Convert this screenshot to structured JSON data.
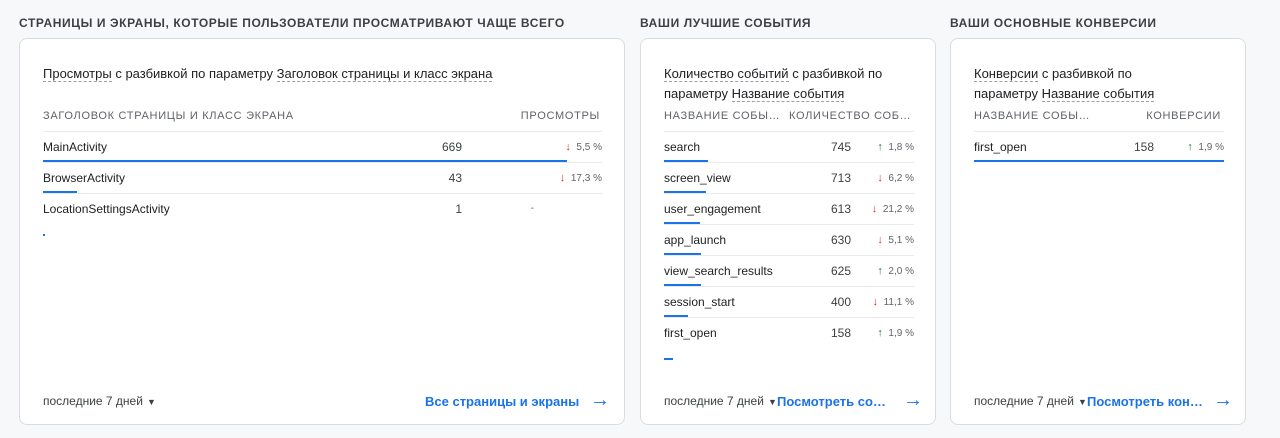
{
  "pages": {
    "title": "СТРАНИЦЫ И ЭКРАНЫ, КОТОРЫЕ ПОЛЬЗОВАТЕЛИ ПРОСМАТРИВАЮТ ЧАЩЕ ВСЕГО",
    "header": {
      "metric": "Просмотры",
      "mid": " с разбивкой по параметру ",
      "dimension": "Заголовок страницы и класс экрана"
    },
    "col1": "ЗАГОЛОВОК СТРАНИЦЫ И КЛАСС ЭКРАНА",
    "col2": "ПРОСМОТРЫ",
    "rows": [
      {
        "name": "MainActivity",
        "value": "669",
        "change": "5,5 %",
        "dir": "down",
        "share": 1.0
      },
      {
        "name": "BrowserActivity",
        "value": "43",
        "change": "17,3 %",
        "dir": "down",
        "share": 0.064
      },
      {
        "name": "LocationSettingsActivity",
        "value": "1",
        "change": "-",
        "dir": "none",
        "share": 0.0015
      }
    ],
    "period": "последние 7 дней",
    "link": "Все страницы и экраны"
  },
  "events": {
    "title": "ВАШИ ЛУЧШИЕ СОБЫТИЯ",
    "header": {
      "metric": "Количество событий",
      "mid": " с разбивкой по параметру ",
      "dimension": "Название события"
    },
    "col1": "НАЗВАНИЕ СОБЫ…",
    "col2": "КОЛИЧЕСТВО СОБ…",
    "rows": [
      {
        "name": "search",
        "value": "745",
        "change": "1,8 %",
        "dir": "up",
        "share": 1.0
      },
      {
        "name": "screen_view",
        "value": "713",
        "change": "6,2 %",
        "dir": "down",
        "share": 0.957
      },
      {
        "name": "user_engagement",
        "value": "613",
        "change": "21,2 %",
        "dir": "down",
        "share": 0.823
      },
      {
        "name": "app_launch",
        "value": "630",
        "change": "5,1 %",
        "dir": "down",
        "share": 0.846
      },
      {
        "name": "view_search_results",
        "value": "625",
        "change": "2,0 %",
        "dir": "up",
        "share": 0.839
      },
      {
        "name": "session_start",
        "value": "400",
        "change": "11,1 %",
        "dir": "down",
        "share": 0.537
      },
      {
        "name": "first_open",
        "value": "158",
        "change": "1,9 %",
        "dir": "up",
        "share": 0.212
      }
    ],
    "period": "последние 7 дней",
    "link": "Посмотреть со…"
  },
  "conversions": {
    "title": "ВАШИ ОСНОВНЫЕ КОНВЕРСИИ",
    "header": {
      "metric": "Конверсии",
      "mid": " с разбивкой по ",
      "mid2": "параметру ",
      "dimension": "Название события"
    },
    "col1": "НАЗВАНИЕ СОБЫ…",
    "col2": "КОНВЕРСИИ",
    "rows": [
      {
        "name": "first_open",
        "value": "158",
        "change": "1,9 %",
        "dir": "up",
        "share": 1.0
      }
    ],
    "period": "последние 7 дней",
    "link": "Посмотреть кон…"
  },
  "icons": {
    "down": "arrow-down-icon",
    "up": "arrow-up-icon",
    "caret": "caret-down-icon",
    "link": "arrow-right-icon"
  },
  "colors": {
    "accent": "#1a73e8",
    "down": "#d93025",
    "up": "#188038"
  }
}
